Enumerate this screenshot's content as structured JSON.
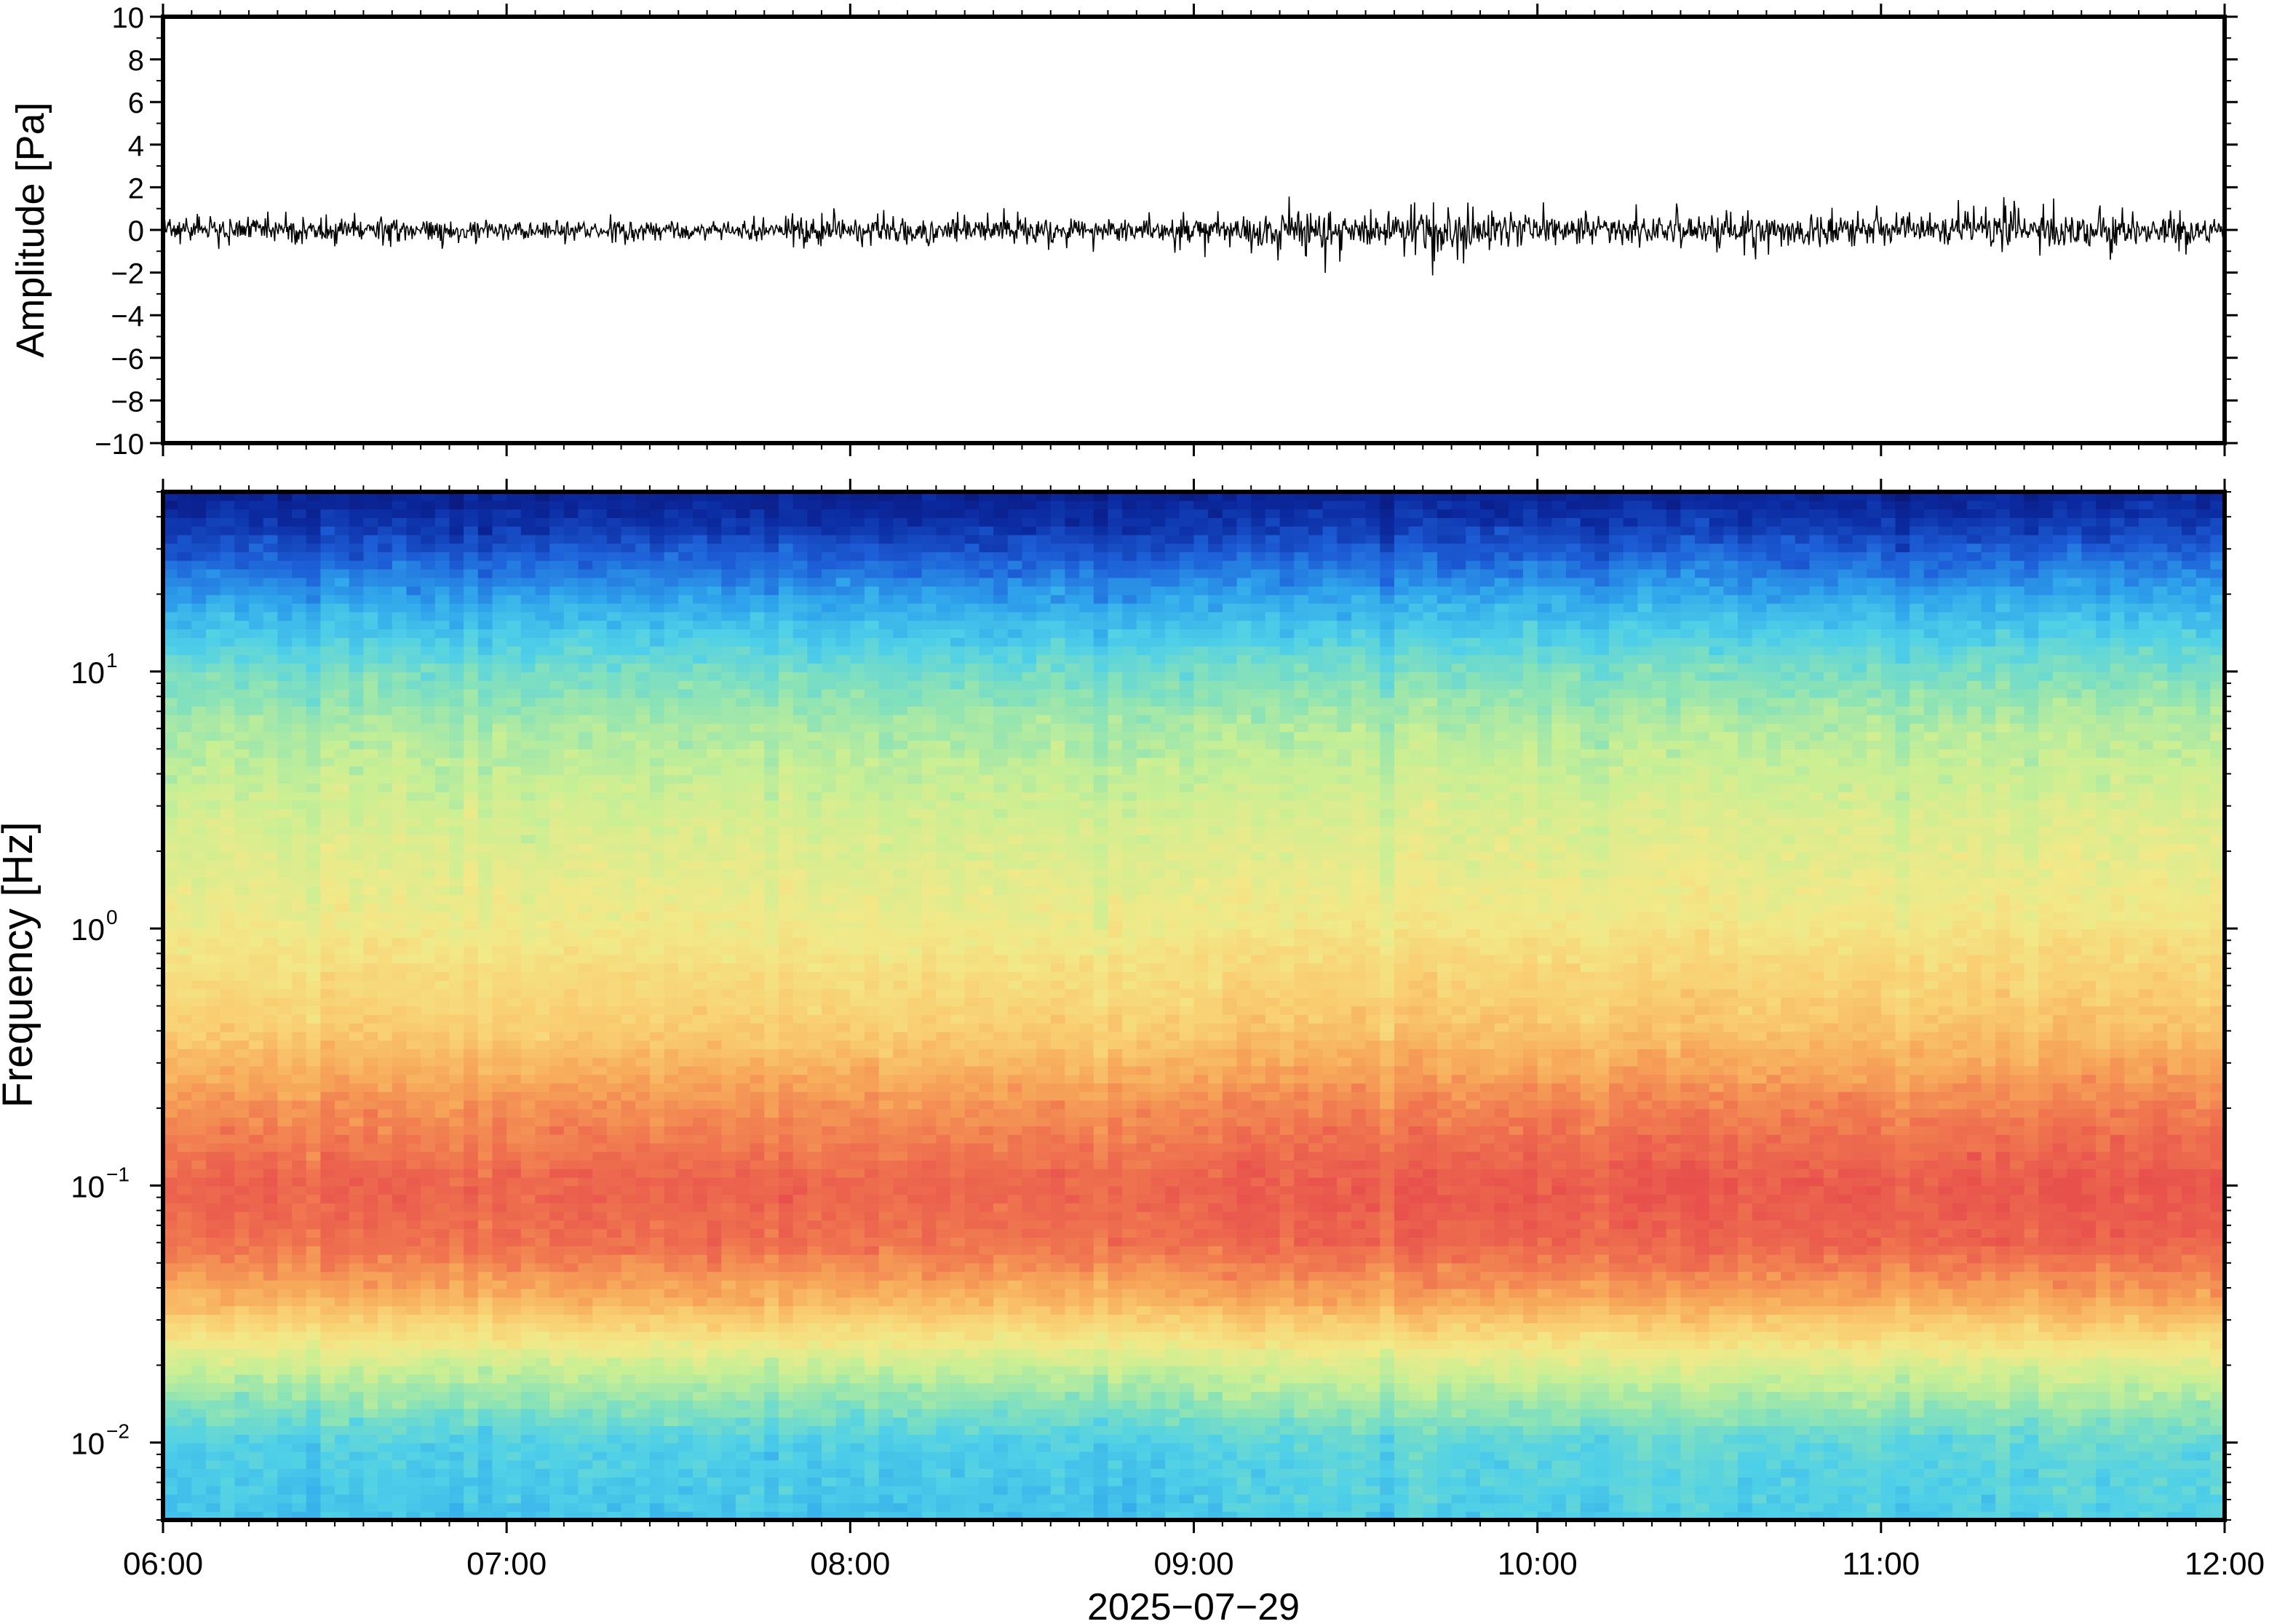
{
  "chart_data": [
    {
      "type": "line",
      "ylabel": "Amplitude [Pa]",
      "ylim": [
        -10,
        10
      ],
      "yticks": [
        10,
        8,
        6,
        4,
        2,
        0,
        -2,
        -4,
        -6,
        -8,
        -10
      ],
      "ytick_labels": [
        "10",
        "8",
        "6",
        "4",
        "2",
        "0",
        "−2",
        "−4",
        "−6",
        "−8",
        "−10"
      ],
      "xlim": [
        "06:00",
        "12:00"
      ],
      "grid": false,
      "legend": "none",
      "line_color": "#000000",
      "trace_envelope": {
        "x": [
          "06:00",
          "06:20",
          "06:40",
          "07:00",
          "07:20",
          "07:40",
          "07:55",
          "08:10",
          "08:25",
          "08:40",
          "08:55",
          "09:10",
          "09:20",
          "09:35",
          "09:45",
          "10:00",
          "10:20",
          "10:40",
          "11:00",
          "11:20",
          "11:40",
          "12:00"
        ],
        "max": [
          1.3,
          0.9,
          0.8,
          0.7,
          0.8,
          0.8,
          1.3,
          0.9,
          1.3,
          1.0,
          1.0,
          1.4,
          1.8,
          1.4,
          1.6,
          1.3,
          1.3,
          1.2,
          1.2,
          1.8,
          1.2,
          1.0
        ],
        "min": [
          -1.0,
          -0.9,
          -1.4,
          -0.8,
          -0.8,
          -0.8,
          -1.0,
          -1.3,
          -1.5,
          -1.1,
          -1.2,
          -1.4,
          -2.2,
          -1.3,
          -2.8,
          -1.4,
          -1.3,
          -1.8,
          -1.2,
          -1.3,
          -1.7,
          -1.1
        ]
      }
    },
    {
      "type": "heatmap",
      "ylabel": "Frequency [Hz]",
      "yscale": "log",
      "ylim": [
        0.005,
        50
      ],
      "yticks": [
        0.01,
        0.1,
        1,
        10
      ],
      "ytick_labels": [
        {
          "base": "10",
          "exp": "−2"
        },
        {
          "base": "10",
          "exp": "−1"
        },
        {
          "base": "10",
          "exp": "0"
        },
        {
          "base": "10",
          "exp": "1"
        }
      ],
      "xlabel": "2025−07−29",
      "xlim": [
        "06:00",
        "12:00"
      ],
      "xticks": [
        "06:00",
        "07:00",
        "08:00",
        "09:00",
        "10:00",
        "11:00",
        "12:00"
      ],
      "colormap": [
        "#0a1270",
        "#0b2aa0",
        "#1d5fd8",
        "#2fa4ec",
        "#4fd0e8",
        "#88e2b8",
        "#c9ef94",
        "#f2e989",
        "#f9cf72",
        "#f7a95a",
        "#f0774f",
        "#e8504c"
      ],
      "power_profile": {
        "frequency_hz": [
          0.005,
          0.01,
          0.02,
          0.035,
          0.06,
          0.1,
          0.2,
          0.4,
          1,
          3,
          6,
          10,
          20,
          35,
          50
        ],
        "relative_level": [
          0.33,
          0.36,
          0.55,
          0.78,
          0.92,
          0.95,
          0.86,
          0.73,
          0.63,
          0.56,
          0.5,
          0.42,
          0.26,
          0.12,
          0.05
        ]
      },
      "grid": false,
      "legend": "none"
    }
  ]
}
